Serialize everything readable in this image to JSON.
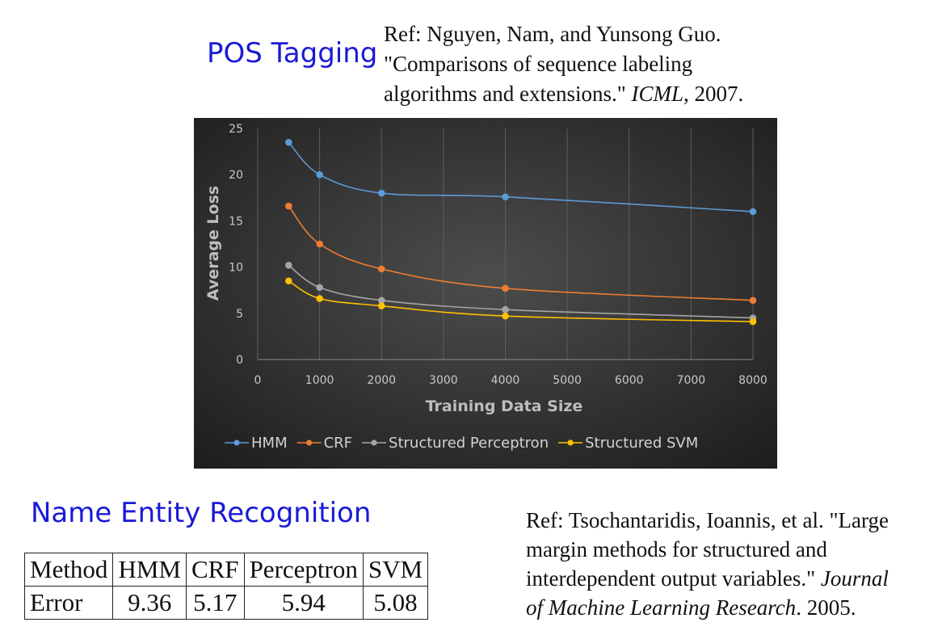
{
  "pos_title": "POS Tagging",
  "ref1": {
    "lines": [
      "Ref: Nguyen, Nam, and Yunsong Guo.",
      "\"Comparisons of sequence labeling",
      "algorithms and extensions.\" "
    ],
    "venue": "ICML",
    "year": ", 2007."
  },
  "ner_title": "Name Entity Recognition",
  "ref2": {
    "lines": [
      "Ref: Tsochantaridis, Ioannis, et al. \"Large",
      "margin methods for structured and",
      "interdependent output variables.\" "
    ],
    "venue_a": "Journal",
    "venue_b": "of Machine Learning Research",
    "year": ". 2005."
  },
  "table": {
    "headers": [
      "Method",
      "HMM",
      "CRF",
      "Perceptron",
      "SVM"
    ],
    "row": [
      "Error",
      "9.36",
      "5.17",
      "5.94",
      "5.08"
    ]
  },
  "chart_data": {
    "type": "line",
    "title": "",
    "xlabel": "Training Data Size",
    "ylabel": "Average Loss",
    "xlim": [
      0,
      8000
    ],
    "ylim": [
      0,
      25
    ],
    "x_ticks": [
      0,
      1000,
      2000,
      3000,
      4000,
      5000,
      6000,
      7000,
      8000
    ],
    "y_ticks": [
      0,
      5,
      10,
      15,
      20,
      25
    ],
    "grid": "vertical",
    "legend": "bottom",
    "x": [
      500,
      1000,
      2000,
      4000,
      8000
    ],
    "series": [
      {
        "name": "HMM",
        "color": "#5b9bd5",
        "values": [
          23.5,
          20.0,
          18.0,
          17.6,
          16.0
        ]
      },
      {
        "name": "CRF",
        "color": "#ed7d31",
        "values": [
          16.6,
          12.5,
          9.8,
          7.7,
          6.4
        ]
      },
      {
        "name": "Structured Perceptron",
        "color": "#a5a5a5",
        "values": [
          10.2,
          7.8,
          6.4,
          5.4,
          4.5
        ]
      },
      {
        "name": "Structured SVM",
        "color": "#ffc000",
        "values": [
          8.5,
          6.6,
          5.8,
          4.7,
          4.1
        ]
      }
    ]
  }
}
